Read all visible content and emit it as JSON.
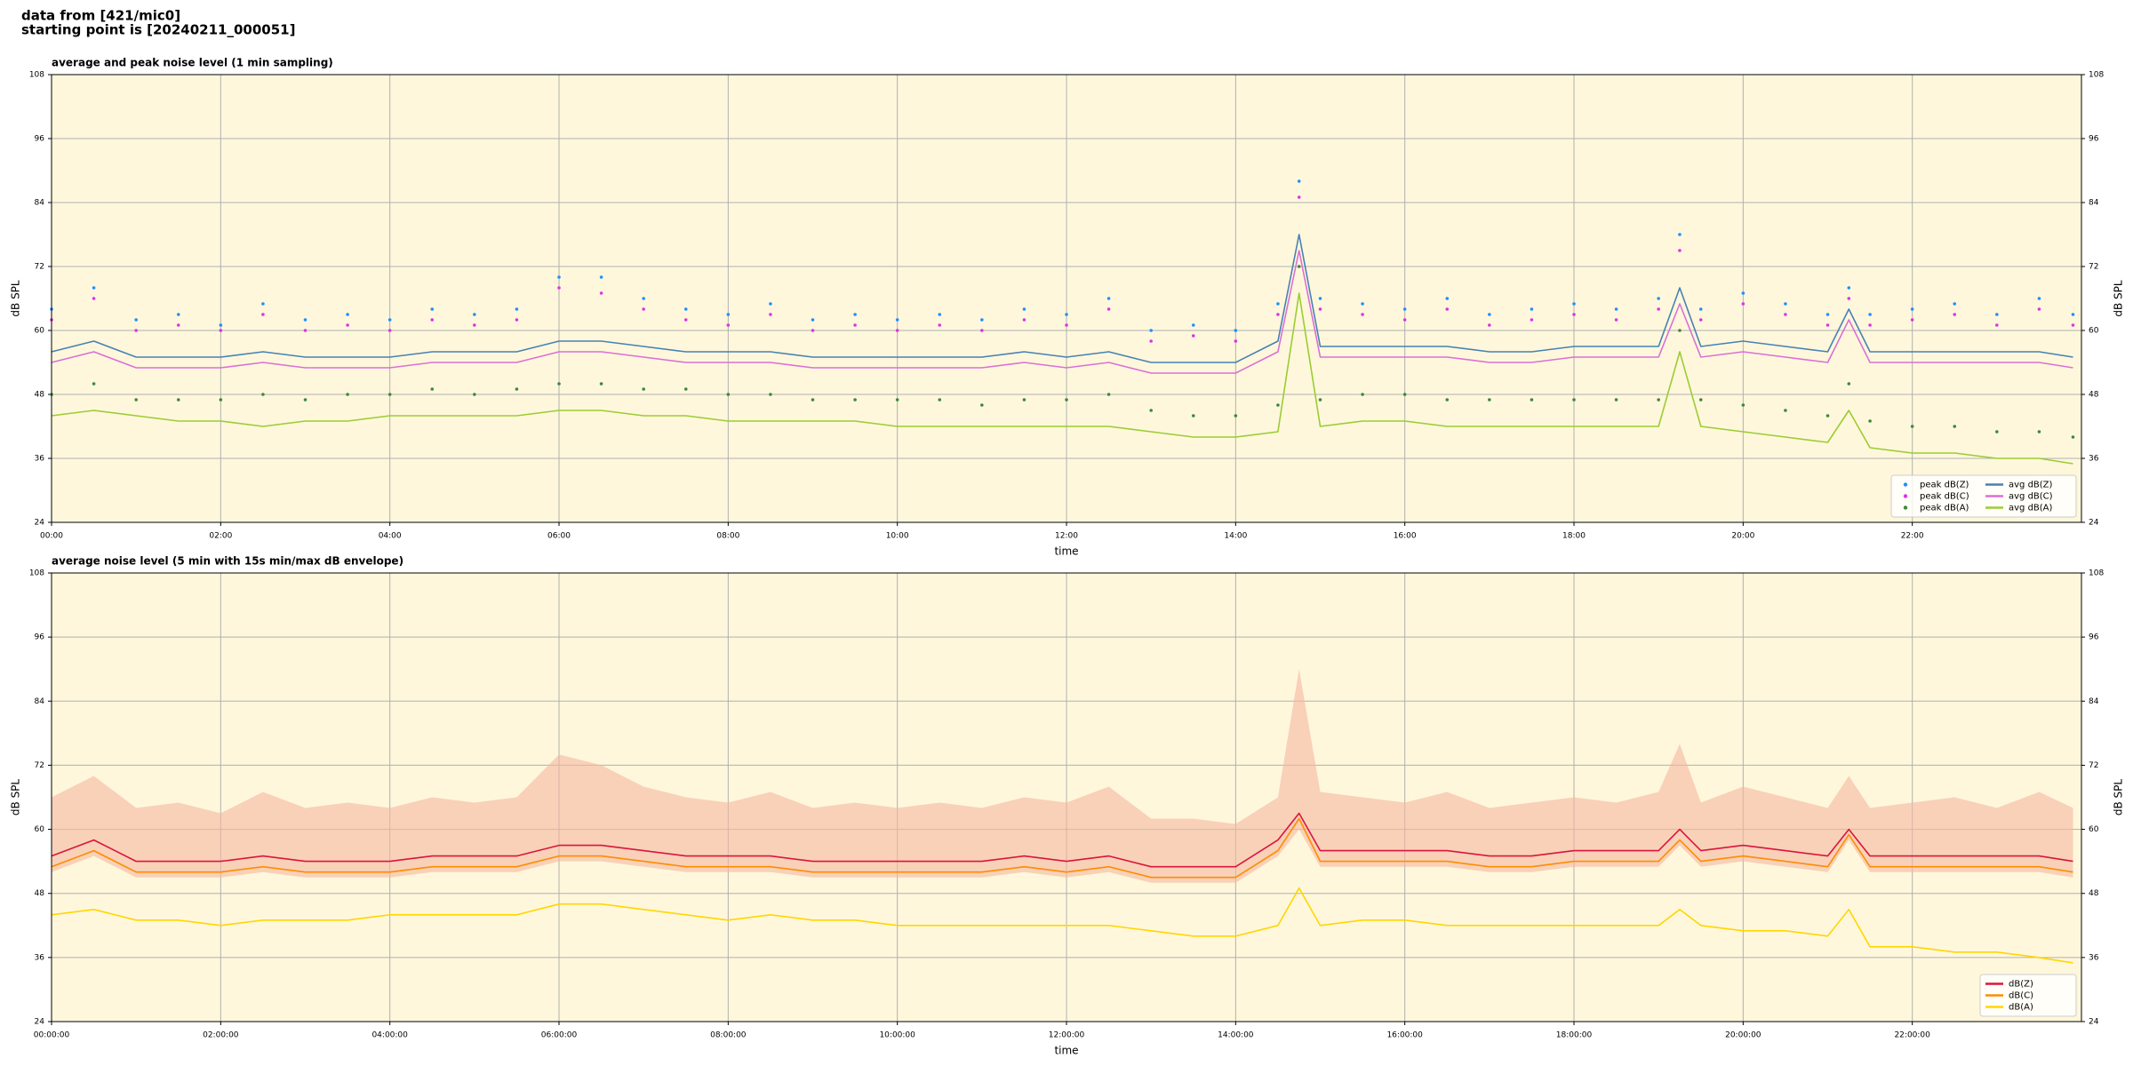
{
  "header": {
    "line1": "data from [421/mic0]",
    "line2": "starting point is [20240211_000051]"
  },
  "chart_data": [
    {
      "type": "line",
      "title": "average and peak noise level (1 min sampling)",
      "x_label": "time",
      "y_label": "dB SPL",
      "xlim": [
        0,
        24
      ],
      "ylim": [
        24,
        108
      ],
      "yticks": [
        24,
        36,
        48,
        60,
        72,
        84,
        96,
        108
      ],
      "xticks": [
        {
          "value": 0,
          "label": "00:00"
        },
        {
          "value": 2,
          "label": "02:00"
        },
        {
          "value": 4,
          "label": "04:00"
        },
        {
          "value": 6,
          "label": "06:00"
        },
        {
          "value": 8,
          "label": "08:00"
        },
        {
          "value": 10,
          "label": "10:00"
        },
        {
          "value": 12,
          "label": "12:00"
        },
        {
          "value": 14,
          "label": "14:00"
        },
        {
          "value": 16,
          "label": "16:00"
        },
        {
          "value": 18,
          "label": "18:00"
        },
        {
          "value": 20,
          "label": "20:00"
        },
        {
          "value": 22,
          "label": "22:00"
        }
      ],
      "grid": true,
      "legend": "lower right",
      "legend_columns": 2,
      "background": "#fff7dc",
      "x": [
        0,
        0.5,
        1,
        1.5,
        2,
        2.5,
        3,
        3.5,
        4,
        4.5,
        5,
        5.5,
        6,
        6.5,
        7,
        7.5,
        8,
        8.5,
        9,
        9.5,
        10,
        10.5,
        11,
        11.5,
        12,
        12.5,
        13,
        13.5,
        14,
        14.5,
        14.75,
        15,
        15.5,
        16,
        16.5,
        17,
        17.5,
        18,
        18.5,
        19,
        19.25,
        19.5,
        20,
        20.5,
        21,
        21.25,
        21.5,
        22,
        22.5,
        23,
        23.5,
        23.9
      ],
      "series": [
        {
          "name": "peak dB(Z)",
          "type": "scatter",
          "color": "#1e90ff",
          "values": [
            64,
            68,
            62,
            63,
            61,
            65,
            62,
            63,
            62,
            64,
            63,
            64,
            70,
            70,
            66,
            64,
            63,
            65,
            62,
            63,
            62,
            63,
            62,
            64,
            63,
            66,
            60,
            61,
            60,
            65,
            88,
            66,
            65,
            64,
            66,
            63,
            64,
            65,
            64,
            66,
            78,
            64,
            67,
            65,
            63,
            68,
            63,
            64,
            65,
            63,
            66,
            63
          ]
        },
        {
          "name": "peak dB(C)",
          "type": "scatter",
          "color": "#e033e0",
          "values": [
            62,
            66,
            60,
            61,
            60,
            63,
            60,
            61,
            60,
            62,
            61,
            62,
            68,
            67,
            64,
            62,
            61,
            63,
            60,
            61,
            60,
            61,
            60,
            62,
            61,
            64,
            58,
            59,
            58,
            63,
            85,
            64,
            63,
            62,
            64,
            61,
            62,
            63,
            62,
            64,
            75,
            62,
            65,
            63,
            61,
            66,
            61,
            62,
            63,
            61,
            64,
            61
          ]
        },
        {
          "name": "peak dB(A)",
          "type": "scatter",
          "color": "#3a8a3a",
          "values": [
            48,
            50,
            47,
            47,
            47,
            48,
            47,
            48,
            48,
            49,
            48,
            49,
            50,
            50,
            49,
            49,
            48,
            48,
            47,
            47,
            47,
            47,
            46,
            47,
            47,
            48,
            45,
            44,
            44,
            46,
            72,
            47,
            48,
            48,
            47,
            47,
            47,
            47,
            47,
            47,
            60,
            47,
            46,
            45,
            44,
            50,
            43,
            42,
            42,
            41,
            41,
            40
          ]
        },
        {
          "name": "avg dB(Z)",
          "type": "line",
          "color": "#4682b4",
          "values": [
            56,
            58,
            55,
            55,
            55,
            56,
            55,
            55,
            55,
            56,
            56,
            56,
            58,
            58,
            57,
            56,
            56,
            56,
            55,
            55,
            55,
            55,
            55,
            56,
            55,
            56,
            54,
            54,
            54,
            58,
            78,
            57,
            57,
            57,
            57,
            56,
            56,
            57,
            57,
            57,
            68,
            57,
            58,
            57,
            56,
            64,
            56,
            56,
            56,
            56,
            56,
            55
          ]
        },
        {
          "name": "avg dB(C)",
          "type": "line",
          "color": "#da70d6",
          "values": [
            54,
            56,
            53,
            53,
            53,
            54,
            53,
            53,
            53,
            54,
            54,
            54,
            56,
            56,
            55,
            54,
            54,
            54,
            53,
            53,
            53,
            53,
            53,
            54,
            53,
            54,
            52,
            52,
            52,
            56,
            75,
            55,
            55,
            55,
            55,
            54,
            54,
            55,
            55,
            55,
            65,
            55,
            56,
            55,
            54,
            62,
            54,
            54,
            54,
            54,
            54,
            53
          ]
        },
        {
          "name": "avg dB(A)",
          "type": "line",
          "color": "#9acd32",
          "values": [
            44,
            45,
            44,
            43,
            43,
            42,
            43,
            43,
            44,
            44,
            44,
            44,
            45,
            45,
            44,
            44,
            43,
            43,
            43,
            43,
            42,
            42,
            42,
            42,
            42,
            42,
            41,
            40,
            40,
            41,
            67,
            42,
            43,
            43,
            42,
            42,
            42,
            42,
            42,
            42,
            56,
            42,
            41,
            40,
            39,
            45,
            38,
            37,
            37,
            36,
            36,
            35
          ]
        }
      ]
    },
    {
      "type": "line",
      "title": "average noise level (5 min with 15s min/max dB envelope)",
      "x_label": "time",
      "y_label": "dB SPL",
      "xlim": [
        0,
        24
      ],
      "ylim": [
        24,
        108
      ],
      "yticks": [
        24,
        36,
        48,
        60,
        72,
        84,
        96,
        108
      ],
      "xticks": [
        {
          "value": 0,
          "label": "00:00:00"
        },
        {
          "value": 2,
          "label": "02:00:00"
        },
        {
          "value": 4,
          "label": "04:00:00"
        },
        {
          "value": 6,
          "label": "06:00:00"
        },
        {
          "value": 8,
          "label": "08:00:00"
        },
        {
          "value": 10,
          "label": "10:00:00"
        },
        {
          "value": 12,
          "label": "12:00:00"
        },
        {
          "value": 14,
          "label": "14:00:00"
        },
        {
          "value": 16,
          "label": "16:00:00"
        },
        {
          "value": 18,
          "label": "18:00:00"
        },
        {
          "value": 20,
          "label": "20:00:00"
        },
        {
          "value": 22,
          "label": "22:00:00"
        }
      ],
      "grid": true,
      "legend": "lower right",
      "legend_columns": 1,
      "background": "#fff7dc",
      "x": [
        0,
        0.5,
        1,
        1.5,
        2,
        2.5,
        3,
        3.5,
        4,
        4.5,
        5,
        5.5,
        6,
        6.5,
        7,
        7.5,
        8,
        8.5,
        9,
        9.5,
        10,
        10.5,
        11,
        11.5,
        12,
        12.5,
        13,
        13.5,
        14,
        14.5,
        14.75,
        15,
        15.5,
        16,
        16.5,
        17,
        17.5,
        18,
        18.5,
        19,
        19.25,
        19.5,
        20,
        20.5,
        21,
        21.25,
        21.5,
        22,
        22.5,
        23,
        23.5,
        23.9
      ],
      "envelope": {
        "color": "#f4b8a0",
        "upper": [
          66,
          70,
          64,
          65,
          63,
          67,
          64,
          65,
          64,
          66,
          65,
          66,
          74,
          72,
          68,
          66,
          65,
          67,
          64,
          65,
          64,
          65,
          64,
          66,
          65,
          68,
          62,
          62,
          61,
          66,
          90,
          67,
          66,
          65,
          67,
          64,
          65,
          66,
          65,
          67,
          76,
          65,
          68,
          66,
          64,
          70,
          64,
          65,
          66,
          64,
          67,
          64
        ],
        "lower": [
          52,
          55,
          51,
          51,
          51,
          52,
          51,
          51,
          51,
          52,
          52,
          52,
          54,
          54,
          53,
          52,
          52,
          52,
          51,
          51,
          51,
          51,
          51,
          52,
          51,
          52,
          50,
          50,
          50,
          55,
          60,
          53,
          53,
          53,
          53,
          52,
          52,
          53,
          53,
          53,
          57,
          53,
          54,
          53,
          52,
          58,
          52,
          52,
          52,
          52,
          52,
          51
        ]
      },
      "series": [
        {
          "name": "dB(Z)",
          "type": "line",
          "color": "#dc143c",
          "values": [
            55,
            58,
            54,
            54,
            54,
            55,
            54,
            54,
            54,
            55,
            55,
            55,
            57,
            57,
            56,
            55,
            55,
            55,
            54,
            54,
            54,
            54,
            54,
            55,
            54,
            55,
            53,
            53,
            53,
            58,
            63,
            56,
            56,
            56,
            56,
            55,
            55,
            56,
            56,
            56,
            60,
            56,
            57,
            56,
            55,
            60,
            55,
            55,
            55,
            55,
            55,
            54
          ]
        },
        {
          "name": "dB(C)",
          "type": "line",
          "color": "#ff8c00",
          "values": [
            53,
            56,
            52,
            52,
            52,
            53,
            52,
            52,
            52,
            53,
            53,
            53,
            55,
            55,
            54,
            53,
            53,
            53,
            52,
            52,
            52,
            52,
            52,
            53,
            52,
            53,
            51,
            51,
            51,
            56,
            62,
            54,
            54,
            54,
            54,
            53,
            53,
            54,
            54,
            54,
            58,
            54,
            55,
            54,
            53,
            59,
            53,
            53,
            53,
            53,
            53,
            52
          ]
        },
        {
          "name": "dB(A)",
          "type": "line",
          "color": "#ffd700",
          "values": [
            44,
            45,
            43,
            43,
            42,
            43,
            43,
            43,
            44,
            44,
            44,
            44,
            46,
            46,
            45,
            44,
            43,
            44,
            43,
            43,
            42,
            42,
            42,
            42,
            42,
            42,
            41,
            40,
            40,
            42,
            49,
            42,
            43,
            43,
            42,
            42,
            42,
            42,
            42,
            42,
            45,
            42,
            41,
            41,
            40,
            45,
            38,
            38,
            37,
            37,
            36,
            35
          ]
        }
      ]
    }
  ]
}
